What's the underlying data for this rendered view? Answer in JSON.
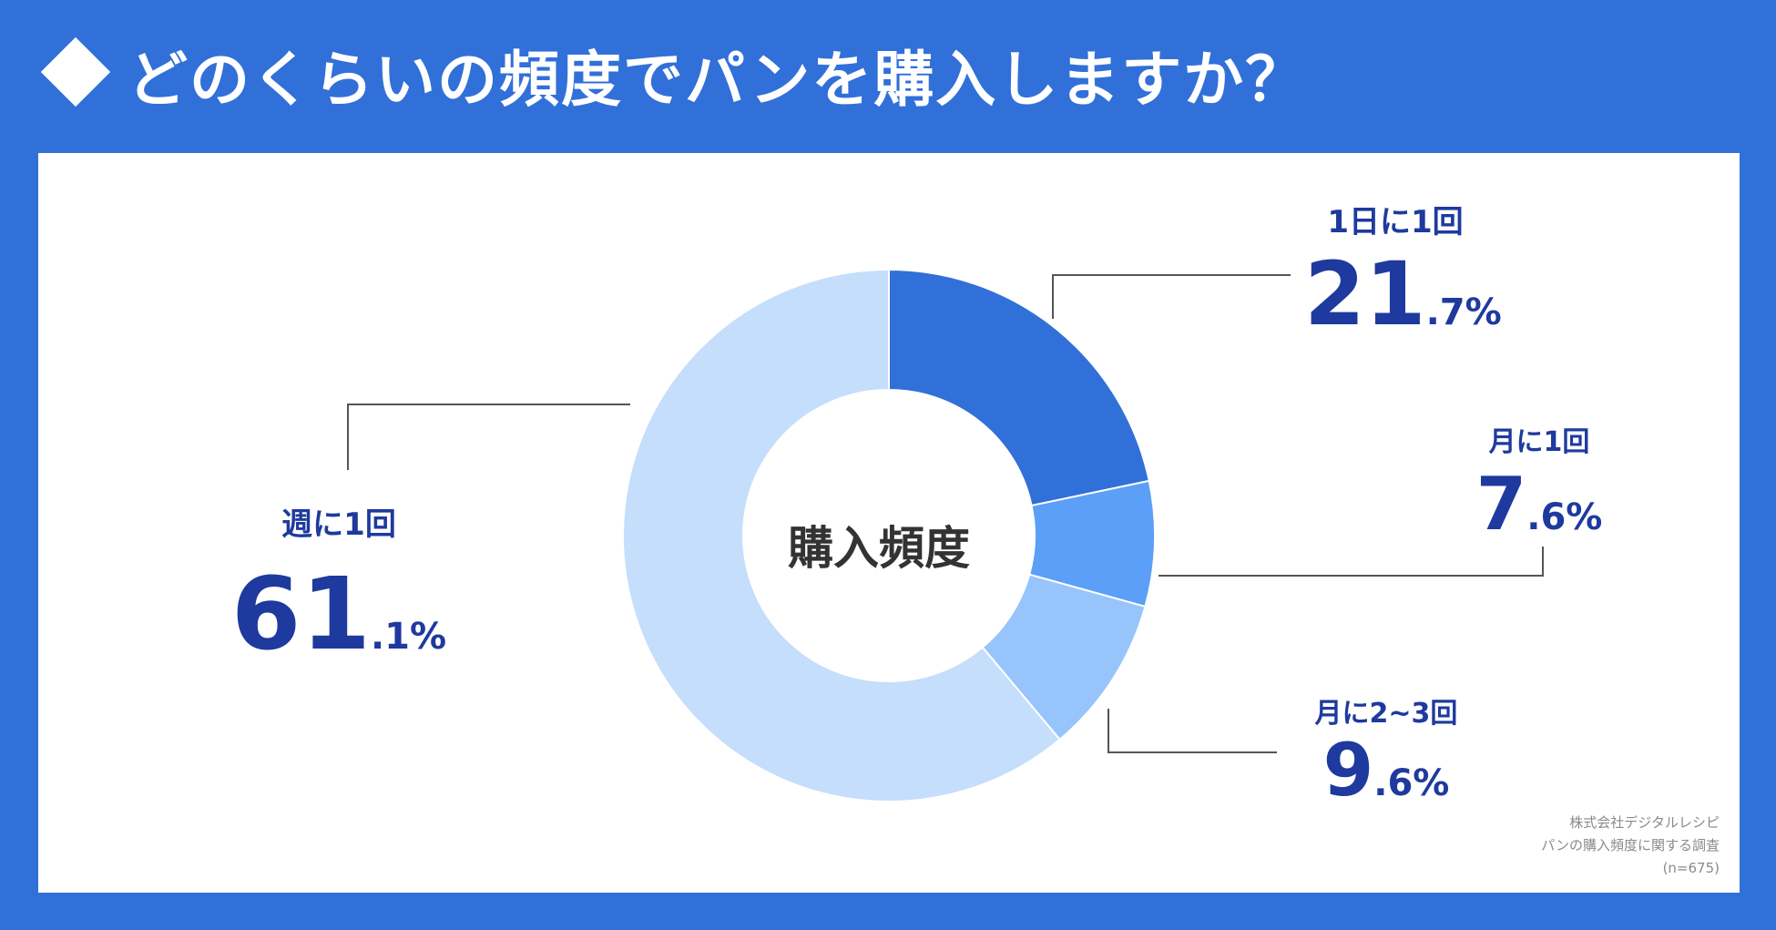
{
  "header": {
    "title": "どのくらいの頻度でパンを購入しますか？",
    "bullet_icon": "diamond-icon"
  },
  "colors": {
    "background": "#3170d8",
    "panel": "#ffffff",
    "accent_text": "#1e3a9e",
    "leader_line": "#555555"
  },
  "chart_data": {
    "type": "pie",
    "center_label": "購入頻度",
    "categories": [
      "1日に1回",
      "月に1回",
      "月に2~3回",
      "週に1回"
    ],
    "values": [
      21.7,
      7.6,
      9.6,
      61.1
    ],
    "colors": [
      "#3170d8",
      "#5b9ff8",
      "#97c4fb",
      "#c4defc"
    ],
    "labels": [
      {
        "category": "1日に1回",
        "int": "21",
        "dec": ".7%"
      },
      {
        "category": "月に1回",
        "int": "7",
        "dec": ".6%"
      },
      {
        "category": "月に2~3回",
        "int": "9",
        "dec": ".6%"
      },
      {
        "category": "週に1回",
        "int": "61",
        "dec": ".1%"
      }
    ]
  },
  "source": {
    "line1": "株式会社デジタルレシピ",
    "line2": "パンの購入頻度に関する調査",
    "line3": "(n=675)"
  }
}
